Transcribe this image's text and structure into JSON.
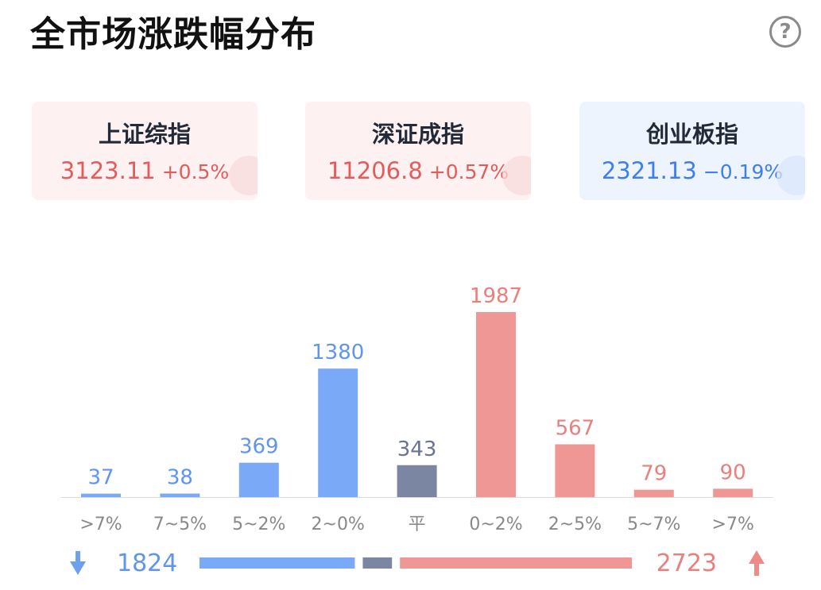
{
  "header": {
    "title": "全市场涨跌幅分布",
    "help_icon": "?"
  },
  "indices": [
    {
      "name": "上证综指",
      "value": "3123.11",
      "change": "+0.5%",
      "trend": "up"
    },
    {
      "name": "深证成指",
      "value": "11206.8",
      "change": "+0.57%",
      "trend": "up"
    },
    {
      "name": "创业板指",
      "value": "2321.13",
      "change": "−0.19%",
      "trend": "down"
    }
  ],
  "colors": {
    "fall": "#7aa9f7",
    "flat": "#7b86a3",
    "rise": "#ef9794",
    "fall_text": "#5f95ee",
    "flat_text": "#6a7490",
    "rise_text": "#e9807d",
    "axis_text": "#888888",
    "up_arrow": "#ee8a87",
    "down_arrow": "#6fa0f0"
  },
  "chart_data": {
    "type": "bar",
    "categories": [
      ">7%",
      "7~5%",
      "5~2%",
      "2~0%",
      "平",
      "0~2%",
      "2~5%",
      "5~7%",
      ">7%"
    ],
    "values": [
      37,
      38,
      369,
      1380,
      343,
      1987,
      567,
      79,
      90
    ],
    "groups": [
      "fall",
      "fall",
      "fall",
      "fall",
      "flat",
      "rise",
      "rise",
      "rise",
      "rise"
    ],
    "title": "",
    "xlabel": "",
    "ylabel": "",
    "ylim": [
      0,
      1987
    ],
    "grid": false
  },
  "summary": {
    "fall_total": "1824",
    "rise_total": "2723",
    "fall_count": 1824,
    "flat_count": 343,
    "rise_count": 2723,
    "down_icon": "arrow-down-icon",
    "up_icon": "arrow-up-icon"
  }
}
